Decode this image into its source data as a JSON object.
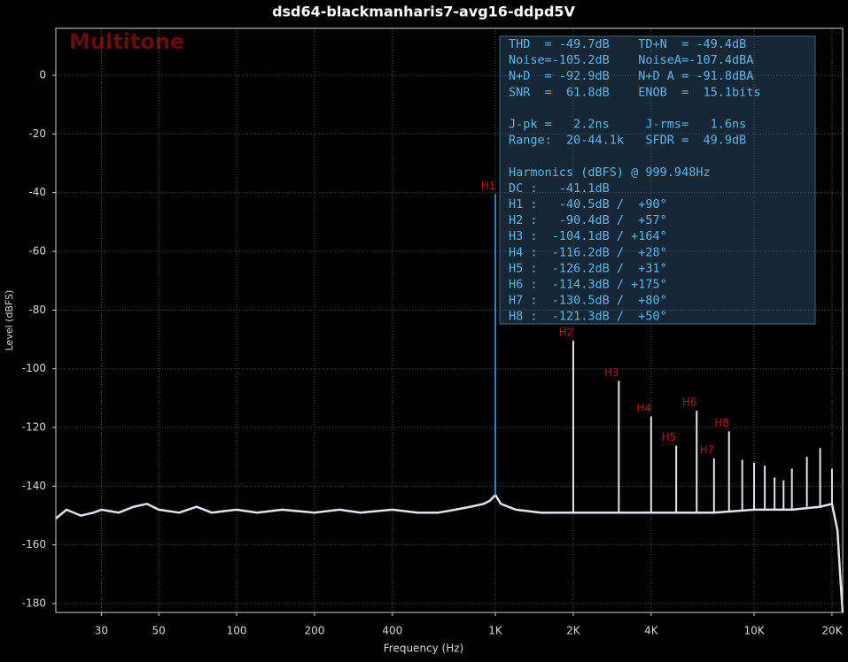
{
  "chart_data": {
    "type": "spectrum",
    "title": "dsd64-blackmanharis7-avg16-ddpd5V",
    "x_label": "Frequency (Hz)",
    "y_label": "Level (dBFS)",
    "watermark": "Multitone",
    "log_x": true,
    "grid": true,
    "xlim": [
      20,
      22000
    ],
    "ylim": [
      -183,
      16
    ],
    "xticks": [
      30,
      50,
      100,
      200,
      400,
      {
        "value": 1000,
        "label": "1K"
      },
      {
        "value": 2000,
        "label": "2K"
      },
      {
        "value": 4000,
        "label": "4K"
      },
      {
        "value": 10000,
        "label": "10K"
      },
      {
        "value": 20000,
        "label": "20K"
      }
    ],
    "yticks": [
      0,
      -20,
      -40,
      -60,
      -80,
      -100,
      -120,
      -140,
      -160,
      -180
    ],
    "series": [
      {
        "name": "noise floor",
        "color": "#dfe4ee",
        "x": [
          20,
          22,
          25,
          28,
          30,
          35,
          40,
          45,
          50,
          60,
          70,
          80,
          100,
          120,
          150,
          200,
          250,
          300,
          400,
          500,
          600,
          700,
          800,
          900,
          950,
          1000,
          1050,
          1200,
          1500,
          2000,
          3000,
          4000,
          5000,
          7000,
          10000,
          14000,
          18000,
          20000,
          21000,
          21500,
          22000
        ],
        "values": [
          -151,
          -148,
          -150,
          -149,
          -148,
          -149,
          -147,
          -146,
          -148,
          -149,
          -147,
          -149,
          -148,
          -149,
          -148,
          -149,
          -148,
          -149,
          -148,
          -149,
          -149,
          -148,
          -147,
          -146,
          -145,
          -143,
          -146,
          -148,
          -149,
          -149,
          -149,
          -149,
          -149,
          -149,
          -148,
          -148,
          -147,
          -146,
          -155,
          -170,
          -183
        ]
      },
      {
        "name": "harmonics",
        "color": "#dfe4ee",
        "fundamental_color": "#1e8fd6",
        "label_color": "#b3191c",
        "x": [
          1000,
          2000,
          3000,
          4000,
          5000,
          6000,
          7000,
          8000,
          9000,
          10000,
          11000,
          12000,
          13000,
          14000,
          16000,
          18000,
          20000
        ],
        "values": [
          -40.5,
          -90.4,
          -104.1,
          -116.2,
          -126.2,
          -114.3,
          -130.5,
          -121.3,
          -131,
          -132,
          -133,
          -137,
          -138,
          -134,
          -130,
          -127,
          -134
        ],
        "labels": [
          "H1",
          "H2",
          "H3",
          "H4",
          "H5",
          "H6",
          "H7",
          "H8",
          null,
          null,
          null,
          null,
          null,
          null,
          null,
          null,
          null
        ]
      }
    ],
    "info_box": [
      [
        "THD  = -49.7dB    TD+N  = -49.4dB",
        "Noise=-105.2dB    NoiseA=-107.4dBA",
        "N+D  = -92.9dB    N+D A = -91.8dBA",
        "SNR  =  61.8dB    ENOB  =  15.1bits"
      ],
      [
        "J-pk =   2.2ns     J-rms=   1.6ns",
        "Range:  20-44.1k   SFDR =  49.9dB"
      ],
      [
        "Harmonics (dBFS) @ 999.948Hz",
        "DC :   -41.1dB",
        "H1 :   -40.5dB /  +90°",
        "H2 :   -90.4dB /  +57°",
        "H3 :  -104.1dB / +164°",
        "H4 :  -116.2dB /  +28°",
        "H5 :  -126.2dB /  +31°",
        "H6 :  -114.3dB / +175°",
        "H7 :  -130.5dB /  +80°",
        "H8 :  -121.3dB /  +50°"
      ]
    ]
  }
}
